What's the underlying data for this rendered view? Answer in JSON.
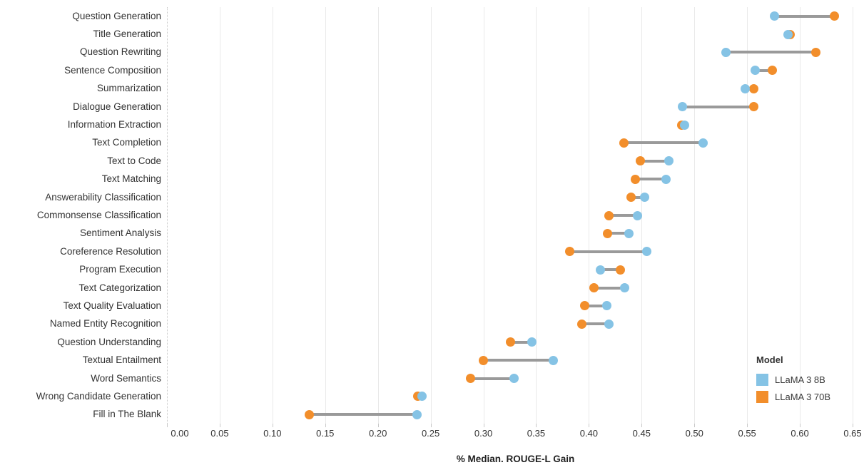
{
  "chart_data": {
    "type": "dumbbell",
    "xlabel": "% Median. ROUGE-L Gain",
    "xlim": [
      0.0,
      0.65
    ],
    "xticks": [
      0.0,
      0.05,
      0.1,
      0.15,
      0.2,
      0.25,
      0.3,
      0.35,
      0.4,
      0.45,
      0.5,
      0.55,
      0.6,
      0.65
    ],
    "grid": "vertical-only",
    "legend": {
      "title": "Model",
      "position": "bottom-right",
      "entries": [
        {
          "label": "LLaMA 3 8B",
          "color": "#85c3e5"
        },
        {
          "label": "LLaMA 3 70B",
          "color": "#f28e2b"
        }
      ]
    },
    "connector_color": "#9a9a9a",
    "categories": [
      "Question Generation",
      "Title Generation",
      "Question Rewriting",
      "Sentence Composition",
      "Summarization",
      "Dialogue Generation",
      "Information Extraction",
      "Text Completion",
      "Text to Code",
      "Text Matching",
      "Answerability Classification",
      "Commonsense Classification",
      "Sentiment Analysis",
      "Coreference Resolution",
      "Program Execution",
      "Text Categorization",
      "Text Quality Evaluation",
      "Named Entity Recognition",
      "Question Understanding",
      "Textual Entailment",
      "Word Semantics",
      "Wrong Candidate Generation",
      "Fill in The Blank"
    ],
    "series": [
      {
        "name": "LLaMA 3 8B",
        "color": "#85c3e5",
        "values": [
          0.576,
          0.589,
          0.53,
          0.558,
          0.548,
          0.489,
          0.491,
          0.508,
          0.476,
          0.473,
          0.453,
          0.446,
          0.438,
          0.455,
          0.411,
          0.434,
          0.417,
          0.419,
          0.346,
          0.366,
          0.329,
          0.242,
          0.237
        ]
      },
      {
        "name": "LLaMA 3 70B",
        "color": "#f28e2b",
        "values": [
          0.633,
          0.591,
          0.615,
          0.574,
          0.556,
          0.556,
          0.488,
          0.433,
          0.449,
          0.444,
          0.44,
          0.419,
          0.418,
          0.382,
          0.43,
          0.405,
          0.396,
          0.393,
          0.326,
          0.3,
          0.288,
          0.238,
          0.135
        ]
      }
    ]
  }
}
